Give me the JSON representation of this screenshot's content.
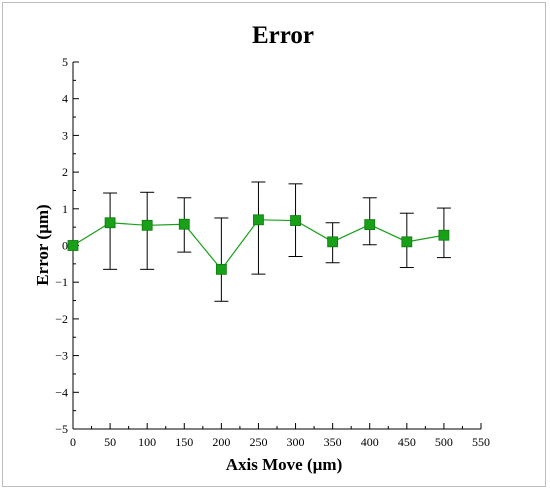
{
  "chart_data": {
    "type": "line",
    "title": "Error",
    "xlabel": "Axis Move (µm)",
    "ylabel": "Error (µm)",
    "xlim": [
      0,
      550
    ],
    "ylim": [
      -5,
      5
    ],
    "xticks": [
      0,
      50,
      100,
      150,
      200,
      250,
      300,
      350,
      400,
      450,
      500,
      550
    ],
    "yticks": [
      5,
      4,
      3,
      2,
      1,
      0,
      -1,
      -2,
      -3,
      -4,
      -5
    ],
    "grid": false,
    "series": [
      {
        "color": "#18a018",
        "points": [
          {
            "x": 0,
            "y": 0.0,
            "err_low": 0.0,
            "err_high": 0.0
          },
          {
            "x": 50,
            "y": 0.62,
            "err_low": -0.65,
            "err_high": 1.43
          },
          {
            "x": 100,
            "y": 0.55,
            "err_low": -0.65,
            "err_high": 1.45
          },
          {
            "x": 150,
            "y": 0.58,
            "err_low": -0.18,
            "err_high": 1.3
          },
          {
            "x": 200,
            "y": -0.65,
            "err_low": -1.52,
            "err_high": 0.75
          },
          {
            "x": 250,
            "y": 0.7,
            "err_low": -0.78,
            "err_high": 1.73
          },
          {
            "x": 300,
            "y": 0.68,
            "err_low": -0.3,
            "err_high": 1.68
          },
          {
            "x": 350,
            "y": 0.1,
            "err_low": -0.47,
            "err_high": 0.62
          },
          {
            "x": 400,
            "y": 0.57,
            "err_low": 0.02,
            "err_high": 1.3
          },
          {
            "x": 450,
            "y": 0.1,
            "err_low": -0.6,
            "err_high": 0.88
          },
          {
            "x": 500,
            "y": 0.28,
            "err_low": -0.33,
            "err_high": 1.02
          }
        ]
      }
    ]
  }
}
